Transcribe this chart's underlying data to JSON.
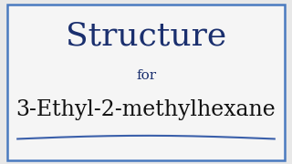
{
  "title": "Structure",
  "subtitle": "for",
  "compound": "3-Ethyl-2-methylhexane",
  "title_color": "#1a2f6e",
  "subtitle_color": "#1a2f6e",
  "compound_color": "#111111",
  "background_color": "#e8e8e8",
  "border_color": "#4a7abf",
  "underline_color": "#3a5faa",
  "title_fontsize": 26,
  "subtitle_fontsize": 11,
  "compound_fontsize": 17
}
